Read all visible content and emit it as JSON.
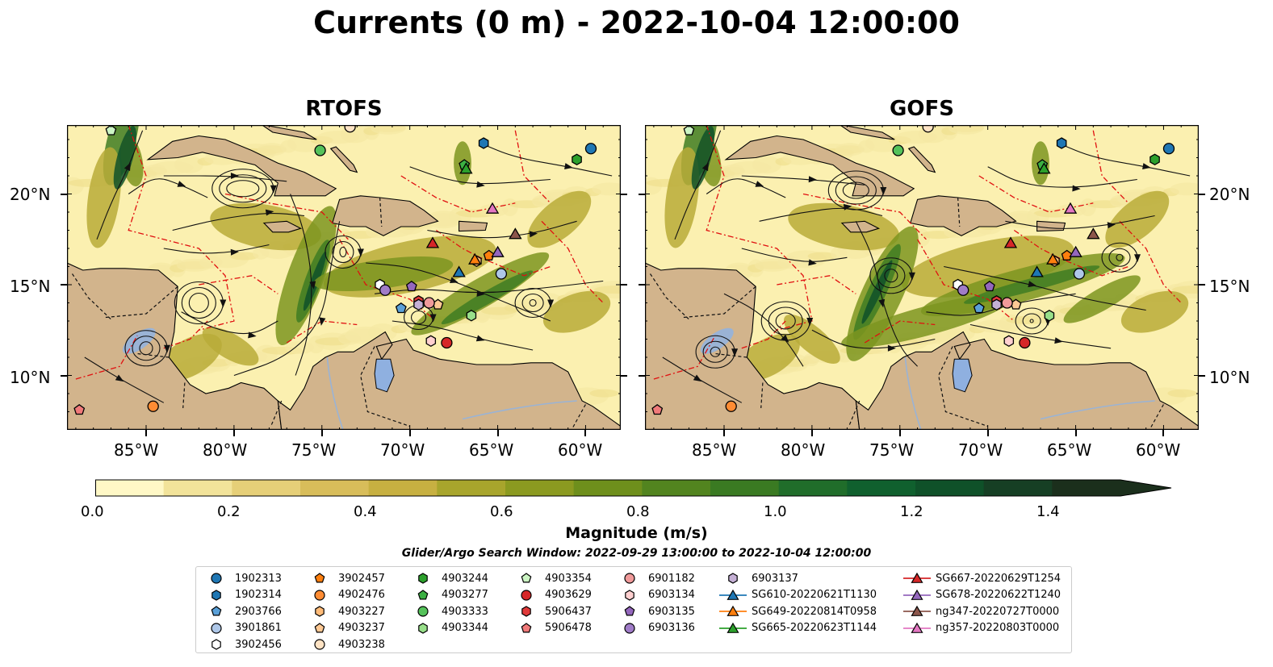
{
  "title": "Currents (0 m) - 2022-10-04 12:00:00",
  "panels": [
    {
      "title": "RTOFS"
    },
    {
      "title": "GOFS"
    }
  ],
  "x_ticks": [
    "85°W",
    "80°W",
    "75°W",
    "70°W",
    "65°W",
    "60°W"
  ],
  "y_ticks": [
    "20°N",
    "15°N",
    "10°N"
  ],
  "colorbar": {
    "label": "Magnitude (m/s)",
    "ticks": [
      "0.0",
      "0.2",
      "0.4",
      "0.6",
      "0.8",
      "1.0",
      "1.2",
      "1.4"
    ],
    "range": [
      0,
      1.5
    ],
    "colors": [
      "#fff8c6",
      "#f2e39a",
      "#e6cf78",
      "#d8bd5a",
      "#c7b041",
      "#a8a52c",
      "#8b9a20",
      "#6e8f1c",
      "#52841f",
      "#3a7a22",
      "#206d2a",
      "#10602e",
      "#0f5129",
      "#163f24",
      "#1b2f1c"
    ]
  },
  "search_window": "Glider/Argo Search Window: 2022-09-29 13:00:00 to 2022-10-04 12:00:00",
  "legend": [
    {
      "label": "1902313",
      "marker": "circle",
      "color": "#1f77b4"
    },
    {
      "label": "1902314",
      "marker": "hexagon",
      "color": "#1f77b4"
    },
    {
      "label": "2903766",
      "marker": "pentagon",
      "color": "#5aa0d8"
    },
    {
      "label": "3901861",
      "marker": "circle",
      "color": "#aec7e8"
    },
    {
      "label": "3902456",
      "marker": "hexagon",
      "color": "#ffffff"
    },
    {
      "label": "3902457",
      "marker": "pentagon",
      "color": "#ff7f0e"
    },
    {
      "label": "4902476",
      "marker": "circle",
      "color": "#ff8c33"
    },
    {
      "label": "4903227",
      "marker": "hexagon",
      "color": "#ffbb78"
    },
    {
      "label": "4903237",
      "marker": "pentagon",
      "color": "#ffc994"
    },
    {
      "label": "4903238",
      "marker": "circle",
      "color": "#ffe3c4"
    },
    {
      "label": "4903244",
      "marker": "hexagon",
      "color": "#2ca02c"
    },
    {
      "label": "4903277",
      "marker": "pentagon",
      "color": "#3cb043"
    },
    {
      "label": "4903333",
      "marker": "circle",
      "color": "#55c25a"
    },
    {
      "label": "4903344",
      "marker": "hexagon",
      "color": "#98df8a"
    },
    {
      "label": "4903354",
      "marker": "pentagon",
      "color": "#ccf5c4"
    },
    {
      "label": "4903629",
      "marker": "circle",
      "color": "#d62728"
    },
    {
      "label": "5906437",
      "marker": "hexagon",
      "color": "#e03a3a"
    },
    {
      "label": "5906478",
      "marker": "pentagon",
      "color": "#f07a7a"
    },
    {
      "label": "6901182",
      "marker": "circle",
      "color": "#f09a9a"
    },
    {
      "label": "6903134",
      "marker": "hexagon",
      "color": "#ffd0d0"
    },
    {
      "label": "6903135",
      "marker": "pentagon",
      "color": "#9467bd"
    },
    {
      "label": "6903136",
      "marker": "circle",
      "color": "#a07cc8"
    },
    {
      "label": "6903137",
      "marker": "hexagon",
      "color": "#c5b0d5"
    },
    {
      "label": "SG610-20220621T1130",
      "marker": "triangle",
      "color": "#1f77b4"
    },
    {
      "label": "SG649-20220814T0958",
      "marker": "triangle",
      "color": "#ff7f0e"
    },
    {
      "label": "SG665-20220623T1144",
      "marker": "triangle",
      "color": "#2ca02c"
    },
    {
      "label": "SG667-20220629T1254",
      "marker": "triangle",
      "color": "#d62728"
    },
    {
      "label": "SG678-20220622T1240",
      "marker": "triangle",
      "color": "#9467bd"
    },
    {
      "label": "ng347-20220727T0000",
      "marker": "triangle",
      "color": "#8c564b"
    },
    {
      "label": "ng357-20220803T0000",
      "marker": "triangle",
      "color": "#e377c2"
    }
  ],
  "map_extent": {
    "lon": [
      -89.5,
      -58.0
    ],
    "lat": [
      7.0,
      23.8
    ]
  },
  "observations": [
    {
      "id": "1902313",
      "lon": -59.7,
      "lat": 22.5
    },
    {
      "id": "1902314",
      "lon": -65.8,
      "lat": 22.8
    },
    {
      "id": "2903766",
      "lon": -70.5,
      "lat": 13.7
    },
    {
      "id": "3901861",
      "lon": -64.8,
      "lat": 15.6
    },
    {
      "id": "3902456",
      "lon": -71.7,
      "lat": 15.0
    },
    {
      "id": "3902457",
      "lon": -65.5,
      "lat": 16.6
    },
    {
      "id": "4902476",
      "lon": -84.6,
      "lat": 8.3
    },
    {
      "id": "4903227",
      "lon": -66.2,
      "lat": 16.3
    },
    {
      "id": "4903237",
      "lon": -68.4,
      "lat": 13.9
    },
    {
      "id": "4903238",
      "lon": -73.4,
      "lat": 23.7
    },
    {
      "id": "4903244",
      "lon": -60.5,
      "lat": 21.9
    },
    {
      "id": "4903277",
      "lon": -66.9,
      "lat": 21.6
    },
    {
      "id": "4903333",
      "lon": -75.1,
      "lat": 22.4
    },
    {
      "id": "4903344",
      "lon": -66.5,
      "lat": 13.3
    },
    {
      "id": "4903354",
      "lon": -87.0,
      "lat": 23.5
    },
    {
      "id": "4903629",
      "lon": -67.9,
      "lat": 11.8
    },
    {
      "id": "5906437",
      "lon": -69.5,
      "lat": 14.1
    },
    {
      "id": "5906478",
      "lon": -88.8,
      "lat": 8.1
    },
    {
      "id": "6901182",
      "lon": -68.9,
      "lat": 14.0
    },
    {
      "id": "6903134",
      "lon": -68.8,
      "lat": 11.9
    },
    {
      "id": "6903135",
      "lon": -69.9,
      "lat": 14.9
    },
    {
      "id": "6903136",
      "lon": -71.4,
      "lat": 14.7
    },
    {
      "id": "6903137",
      "lon": -69.5,
      "lat": 13.9
    },
    {
      "id": "SG610-20220621T1130",
      "lon": -67.2,
      "lat": 15.7
    },
    {
      "id": "SG649-20220814T0958",
      "lon": -66.3,
      "lat": 16.4
    },
    {
      "id": "SG665-20220623T1144",
      "lon": -66.8,
      "lat": 21.4
    },
    {
      "id": "SG667-20220629T1254",
      "lon": -68.7,
      "lat": 17.3
    },
    {
      "id": "SG678-20220622T1240",
      "lon": -65.0,
      "lat": 16.8
    },
    {
      "id": "ng347-20220727T0000",
      "lon": -64.0,
      "lat": 17.8
    },
    {
      "id": "ng357-20220803T0000",
      "lon": -65.3,
      "lat": 19.2
    }
  ]
}
